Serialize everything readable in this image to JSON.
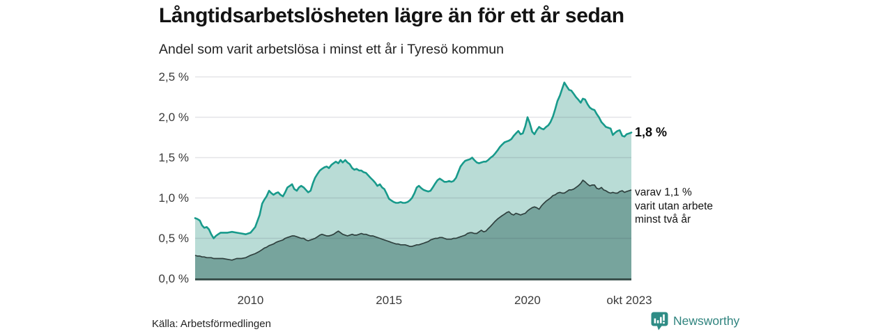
{
  "title": "Långtidsarbetslösheten lägre än för ett år sedan",
  "subtitle": "Andel som varit arbetslösa i minst ett år i Tyresö kommun",
  "source": "Källa: Arbetsförmedlingen",
  "branding": {
    "name": "Newsworthy",
    "color": "#2f837e"
  },
  "annotations": {
    "total_end_label": "1,8 %",
    "two_year_line1": "varav 1,1 %",
    "two_year_line2": "varit utan arbete",
    "two_year_line3": "minst två år"
  },
  "chart_data": {
    "type": "area",
    "title": "Långtidsarbetslösheten lägre än för ett år sedan",
    "subtitle": "Andel som varit arbetslösa i minst ett år i Tyresö kommun",
    "unit": "%",
    "xlim": [
      2008.0,
      2023.75
    ],
    "ylim": [
      0,
      2.5
    ],
    "grid": true,
    "x_ticks": [
      {
        "t": 2010,
        "label": "2010"
      },
      {
        "t": 2015,
        "label": "2015"
      },
      {
        "t": 2020,
        "label": "2020"
      },
      {
        "t": 2023.75,
        "label": "okt 2023"
      }
    ],
    "y_ticks": [
      {
        "v": 0.0,
        "label": "0,0 %"
      },
      {
        "v": 0.5,
        "label": "0,5 %"
      },
      {
        "v": 1.0,
        "label": "1,0 %"
      },
      {
        "v": 1.5,
        "label": "1,5 %"
      },
      {
        "v": 2.0,
        "label": "2,0 %"
      },
      {
        "v": 2.5,
        "label": "2,5 %"
      }
    ],
    "colors": {
      "total_line": "#189a8b",
      "total_fill": "#b9dcd6",
      "two_year_line": "#2f403e",
      "two_year_fill": "#77a49d",
      "gridline": "rgba(50,50,70,0.13)",
      "axis": "#3a504c"
    },
    "x": [
      2008.0,
      2008.08,
      2008.17,
      2008.25,
      2008.33,
      2008.42,
      2008.5,
      2008.58,
      2008.67,
      2008.75,
      2008.83,
      2008.92,
      2009.0,
      2009.17,
      2009.33,
      2009.5,
      2009.67,
      2009.83,
      2010.0,
      2010.17,
      2010.33,
      2010.42,
      2010.5,
      2010.58,
      2010.67,
      2010.75,
      2010.83,
      2010.92,
      2011.0,
      2011.08,
      2011.17,
      2011.25,
      2011.33,
      2011.42,
      2011.5,
      2011.58,
      2011.67,
      2011.75,
      2011.83,
      2011.92,
      2012.0,
      2012.08,
      2012.17,
      2012.25,
      2012.33,
      2012.42,
      2012.5,
      2012.58,
      2012.67,
      2012.75,
      2012.83,
      2012.92,
      2013.0,
      2013.08,
      2013.17,
      2013.25,
      2013.33,
      2013.42,
      2013.5,
      2013.58,
      2013.67,
      2013.75,
      2013.83,
      2013.92,
      2014.0,
      2014.08,
      2014.17,
      2014.25,
      2014.33,
      2014.42,
      2014.5,
      2014.58,
      2014.67,
      2014.75,
      2014.83,
      2014.92,
      2015.0,
      2015.08,
      2015.17,
      2015.25,
      2015.33,
      2015.42,
      2015.5,
      2015.58,
      2015.67,
      2015.75,
      2015.83,
      2015.92,
      2016.0,
      2016.08,
      2016.17,
      2016.25,
      2016.33,
      2016.42,
      2016.5,
      2016.58,
      2016.67,
      2016.75,
      2016.83,
      2016.92,
      2017.0,
      2017.08,
      2017.17,
      2017.25,
      2017.33,
      2017.42,
      2017.5,
      2017.58,
      2017.67,
      2017.75,
      2017.83,
      2017.92,
      2018.0,
      2018.08,
      2018.17,
      2018.25,
      2018.33,
      2018.42,
      2018.5,
      2018.58,
      2018.67,
      2018.75,
      2018.83,
      2018.92,
      2019.0,
      2019.08,
      2019.17,
      2019.25,
      2019.33,
      2019.42,
      2019.5,
      2019.58,
      2019.67,
      2019.75,
      2019.83,
      2019.92,
      2020.0,
      2020.08,
      2020.17,
      2020.25,
      2020.33,
      2020.42,
      2020.5,
      2020.58,
      2020.67,
      2020.75,
      2020.83,
      2020.92,
      2021.0,
      2021.08,
      2021.17,
      2021.25,
      2021.33,
      2021.42,
      2021.5,
      2021.58,
      2021.67,
      2021.75,
      2021.83,
      2021.92,
      2022.0,
      2022.08,
      2022.17,
      2022.25,
      2022.33,
      2022.42,
      2022.5,
      2022.58,
      2022.67,
      2022.75,
      2022.83,
      2022.92,
      2023.0,
      2023.08,
      2023.17,
      2023.25,
      2023.33,
      2023.42,
      2023.5,
      2023.58,
      2023.67,
      2023.75
    ],
    "series": [
      {
        "name": "Andel arbetslösa minst ett år",
        "end_value_label": "1,8 %",
        "values": [
          0.75,
          0.74,
          0.72,
          0.66,
          0.63,
          0.64,
          0.61,
          0.55,
          0.5,
          0.53,
          0.55,
          0.57,
          0.57,
          0.57,
          0.58,
          0.57,
          0.56,
          0.55,
          0.57,
          0.64,
          0.79,
          0.93,
          0.98,
          1.02,
          1.09,
          1.06,
          1.04,
          1.06,
          1.07,
          1.04,
          1.02,
          1.07,
          1.13,
          1.15,
          1.17,
          1.11,
          1.09,
          1.13,
          1.15,
          1.13,
          1.1,
          1.07,
          1.09,
          1.18,
          1.25,
          1.3,
          1.34,
          1.36,
          1.38,
          1.39,
          1.37,
          1.41,
          1.43,
          1.45,
          1.43,
          1.47,
          1.44,
          1.47,
          1.44,
          1.42,
          1.37,
          1.35,
          1.36,
          1.34,
          1.34,
          1.32,
          1.31,
          1.28,
          1.25,
          1.22,
          1.19,
          1.15,
          1.17,
          1.13,
          1.11,
          1.05,
          0.99,
          0.97,
          0.95,
          0.94,
          0.94,
          0.95,
          0.94,
          0.94,
          0.95,
          0.97,
          1.0,
          1.06,
          1.13,
          1.15,
          1.12,
          1.1,
          1.09,
          1.08,
          1.09,
          1.13,
          1.18,
          1.22,
          1.24,
          1.22,
          1.2,
          1.2,
          1.21,
          1.2,
          1.21,
          1.25,
          1.32,
          1.39,
          1.43,
          1.46,
          1.47,
          1.48,
          1.5,
          1.47,
          1.44,
          1.43,
          1.44,
          1.45,
          1.45,
          1.47,
          1.5,
          1.52,
          1.55,
          1.59,
          1.63,
          1.66,
          1.69,
          1.7,
          1.71,
          1.73,
          1.77,
          1.8,
          1.83,
          1.79,
          1.8,
          1.89,
          2.0,
          1.93,
          1.82,
          1.79,
          1.84,
          1.88,
          1.86,
          1.85,
          1.88,
          1.9,
          1.94,
          2.01,
          2.1,
          2.2,
          2.27,
          2.35,
          2.43,
          2.38,
          2.34,
          2.33,
          2.29,
          2.25,
          2.22,
          2.18,
          2.23,
          2.22,
          2.16,
          2.12,
          2.1,
          2.09,
          2.04,
          2.0,
          1.94,
          1.91,
          1.88,
          1.87,
          1.86,
          1.78,
          1.81,
          1.83,
          1.84,
          1.77,
          1.76,
          1.79,
          1.8,
          1.81
        ]
      },
      {
        "name": "varav utan arbete minst två år",
        "end_value_label": "varav 1,1 % varit utan arbete minst två år",
        "values": [
          0.29,
          0.28,
          0.28,
          0.27,
          0.27,
          0.26,
          0.26,
          0.26,
          0.25,
          0.25,
          0.25,
          0.25,
          0.25,
          0.24,
          0.23,
          0.25,
          0.25,
          0.26,
          0.29,
          0.31,
          0.34,
          0.36,
          0.38,
          0.39,
          0.41,
          0.42,
          0.43,
          0.45,
          0.46,
          0.47,
          0.48,
          0.5,
          0.51,
          0.52,
          0.53,
          0.53,
          0.52,
          0.51,
          0.5,
          0.5,
          0.48,
          0.47,
          0.48,
          0.49,
          0.5,
          0.52,
          0.54,
          0.55,
          0.54,
          0.53,
          0.53,
          0.54,
          0.55,
          0.57,
          0.59,
          0.57,
          0.55,
          0.54,
          0.53,
          0.54,
          0.55,
          0.54,
          0.54,
          0.55,
          0.56,
          0.55,
          0.55,
          0.54,
          0.53,
          0.53,
          0.52,
          0.51,
          0.5,
          0.49,
          0.48,
          0.47,
          0.46,
          0.45,
          0.44,
          0.43,
          0.43,
          0.42,
          0.42,
          0.42,
          0.41,
          0.4,
          0.4,
          0.41,
          0.42,
          0.42,
          0.43,
          0.44,
          0.45,
          0.46,
          0.48,
          0.49,
          0.5,
          0.5,
          0.51,
          0.51,
          0.5,
          0.49,
          0.49,
          0.49,
          0.5,
          0.5,
          0.51,
          0.52,
          0.53,
          0.54,
          0.56,
          0.57,
          0.57,
          0.56,
          0.56,
          0.58,
          0.6,
          0.58,
          0.59,
          0.62,
          0.65,
          0.68,
          0.71,
          0.74,
          0.76,
          0.78,
          0.8,
          0.82,
          0.83,
          0.8,
          0.79,
          0.81,
          0.8,
          0.79,
          0.8,
          0.81,
          0.84,
          0.86,
          0.88,
          0.89,
          0.88,
          0.86,
          0.9,
          0.93,
          0.96,
          0.98,
          1.0,
          1.03,
          1.04,
          1.06,
          1.07,
          1.06,
          1.06,
          1.08,
          1.1,
          1.1,
          1.11,
          1.13,
          1.15,
          1.18,
          1.22,
          1.2,
          1.17,
          1.15,
          1.16,
          1.16,
          1.12,
          1.11,
          1.13,
          1.1,
          1.09,
          1.07,
          1.06,
          1.07,
          1.06,
          1.06,
          1.08,
          1.09,
          1.07,
          1.08,
          1.09,
          1.1
        ]
      }
    ]
  }
}
